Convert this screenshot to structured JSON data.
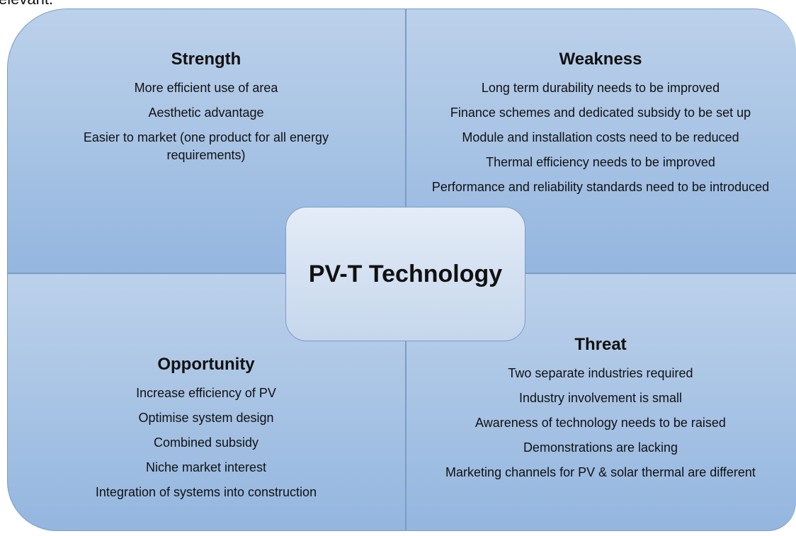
{
  "header_fragment": "elevant.",
  "center": "PV-T Technology",
  "quadrants": [
    {
      "title": "Strength",
      "items": [
        "More efficient use of area",
        "Aesthetic advantage",
        "Easier to market (one product for all energy requirements)"
      ]
    },
    {
      "title": "Weakness",
      "items": [
        "Long term durability needs to be improved",
        "Finance schemes and dedicated subsidy to be set up",
        "Module and installation costs need to be reduced",
        "Thermal efficiency needs to be improved",
        "Performance and reliability standards need to be introduced"
      ]
    },
    {
      "title": "Opportunity",
      "items": [
        "Increase efficiency of PV",
        "Optimise system design",
        "Combined subsidy",
        "Niche market interest",
        "Integration of systems into construction"
      ]
    },
    {
      "title": "Threat",
      "items": [
        "Two separate industries required",
        "Industry involvement is small",
        "Awareness of technology needs to be raised",
        "Demonstrations are lacking",
        "Marketing channels for PV & solar thermal are different"
      ]
    }
  ]
}
